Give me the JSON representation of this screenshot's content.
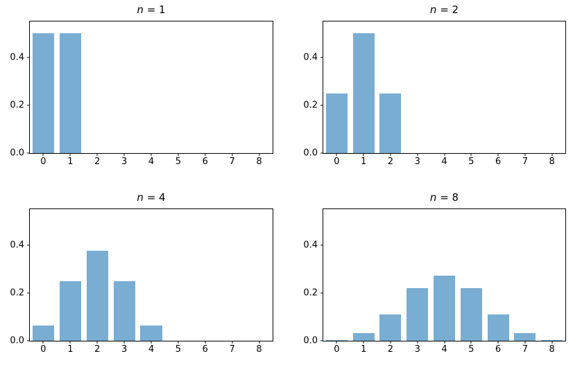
{
  "figure": {
    "background": "#ffffff",
    "axis_color": "#000000",
    "text_color": "#000000"
  },
  "chart_data": [
    {
      "type": "bar",
      "title": "n = 1",
      "title_var": "n",
      "title_rest": " = 1",
      "categories": [
        "0",
        "1",
        "2",
        "3",
        "4",
        "5",
        "6",
        "7",
        "8"
      ],
      "values": [
        0.5,
        0.5,
        0,
        0,
        0,
        0,
        0,
        0,
        0
      ],
      "xlabel": "",
      "ylabel": "",
      "xlim": [
        -0.5,
        8.5
      ],
      "ylim": [
        0,
        0.55
      ],
      "bar_rel_width": 0.8,
      "yticks": [
        "0.0",
        "0.2",
        "0.4"
      ],
      "ytick_values": [
        0,
        0.2,
        0.4
      ],
      "grid": false,
      "legend": null,
      "bar_color": "#79add2"
    },
    {
      "type": "bar",
      "title": "n = 2",
      "title_var": "n",
      "title_rest": " = 2",
      "categories": [
        "0",
        "1",
        "2",
        "3",
        "4",
        "5",
        "6",
        "7",
        "8"
      ],
      "values": [
        0.25,
        0.5,
        0.25,
        0,
        0,
        0,
        0,
        0,
        0
      ],
      "xlabel": "",
      "ylabel": "",
      "xlim": [
        -0.5,
        8.5
      ],
      "ylim": [
        0,
        0.55
      ],
      "bar_rel_width": 0.8,
      "yticks": [
        "0.0",
        "0.2",
        "0.4"
      ],
      "ytick_values": [
        0,
        0.2,
        0.4
      ],
      "grid": false,
      "legend": null,
      "bar_color": "#79add2"
    },
    {
      "type": "bar",
      "title": "n = 4",
      "title_var": "n",
      "title_rest": " = 4",
      "categories": [
        "0",
        "1",
        "2",
        "3",
        "4",
        "5",
        "6",
        "7",
        "8"
      ],
      "values": [
        0.0625,
        0.25,
        0.375,
        0.25,
        0.0625,
        0,
        0,
        0,
        0
      ],
      "xlabel": "",
      "ylabel": "",
      "xlim": [
        -0.5,
        8.5
      ],
      "ylim": [
        0,
        0.55
      ],
      "bar_rel_width": 0.8,
      "yticks": [
        "0.0",
        "0.2",
        "0.4"
      ],
      "ytick_values": [
        0,
        0.2,
        0.4
      ],
      "grid": false,
      "legend": null,
      "bar_color": "#79add2"
    },
    {
      "type": "bar",
      "title": "n = 8",
      "title_var": "n",
      "title_rest": " = 8",
      "categories": [
        "0",
        "1",
        "2",
        "3",
        "4",
        "5",
        "6",
        "7",
        "8"
      ],
      "values": [
        0.0039,
        0.03125,
        0.109375,
        0.21875,
        0.273438,
        0.21875,
        0.109375,
        0.03125,
        0.0039
      ],
      "xlabel": "",
      "ylabel": "",
      "xlim": [
        -0.5,
        8.5
      ],
      "ylim": [
        0,
        0.55
      ],
      "bar_rel_width": 0.8,
      "yticks": [
        "0.0",
        "0.2",
        "0.4"
      ],
      "ytick_values": [
        0,
        0.2,
        0.4
      ],
      "grid": false,
      "legend": null,
      "bar_color": "#79add2"
    }
  ]
}
